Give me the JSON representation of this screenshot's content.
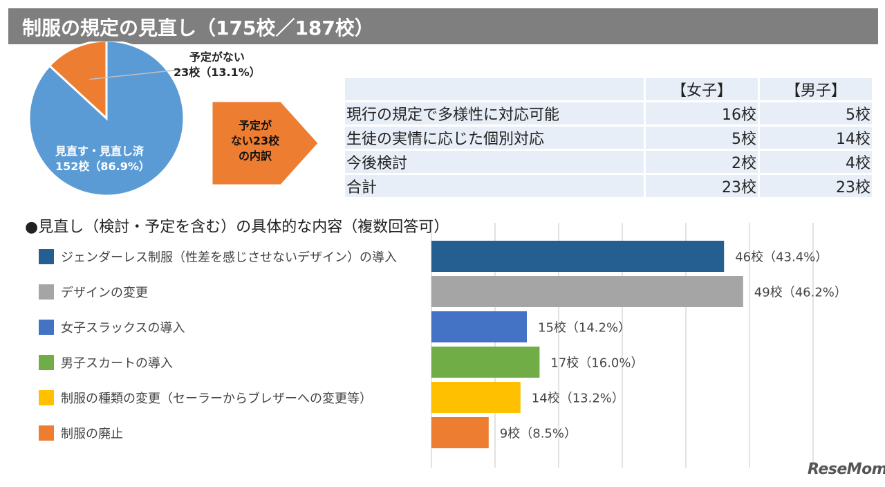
{
  "title": "制服の規定の見直し（175校／187校）",
  "pie": {
    "slices": [
      {
        "label_line1": "見直す・見直し済",
        "label_line2": "152校（86.9%）",
        "value": 152,
        "percent": 86.9,
        "color": "#5b9bd5"
      },
      {
        "label_line1": "予定がない",
        "label_line2": "23校（13.1%）",
        "value": 23,
        "percent": 13.1,
        "color": "#ed7d31"
      }
    ]
  },
  "arrow": {
    "line1": "予定が",
    "line2": "ない23校",
    "line3": "の内訳",
    "color": "#ed7d31"
  },
  "breakdown_table": {
    "headers": [
      "",
      "【女子】",
      "【男子】"
    ],
    "rows": [
      {
        "label": "現行の規定で多様性に対応可能",
        "girls": "16校",
        "boys": "5校"
      },
      {
        "label": "生徒の実情に応じた個別対応",
        "girls": "5校",
        "boys": "14校"
      },
      {
        "label": "今後検討",
        "girls": "2校",
        "boys": "4校"
      },
      {
        "label": "合計",
        "girls": "23校",
        "boys": "23校"
      }
    ]
  },
  "section_title": "●見直し（検討・予定を含む）の具体的な内容（複数回答可）",
  "chart_data": {
    "type": "bar",
    "orientation": "horizontal",
    "title": "見直し（検討・予定を含む）の具体的な内容（複数回答可）",
    "categories": [
      "ジェンダーレス制服（性差を感じさせないデザイン）の導入",
      "デザインの変更",
      "女子スラックスの導入",
      "男子スカートの導入",
      "制服の種類の変更（セーラーからブレザーへの変更等）",
      "制服の廃止"
    ],
    "values": [
      46,
      49,
      15,
      17,
      14,
      9
    ],
    "percents": [
      43.4,
      46.2,
      14.2,
      16.0,
      13.2,
      8.5
    ],
    "data_labels": [
      "46校（43.4%）",
      "49校（46.2%）",
      "15校（14.2%）",
      "17校（16.0%）",
      "14校（13.2%）",
      "9校（8.5%）"
    ],
    "colors": [
      "#255e91",
      "#a5a5a5",
      "#4472c4",
      "#70ad47",
      "#ffc000",
      "#ed7d31"
    ],
    "xlim": [
      0,
      60
    ],
    "grid": true,
    "legend": "left"
  },
  "logo": "ReseMom"
}
